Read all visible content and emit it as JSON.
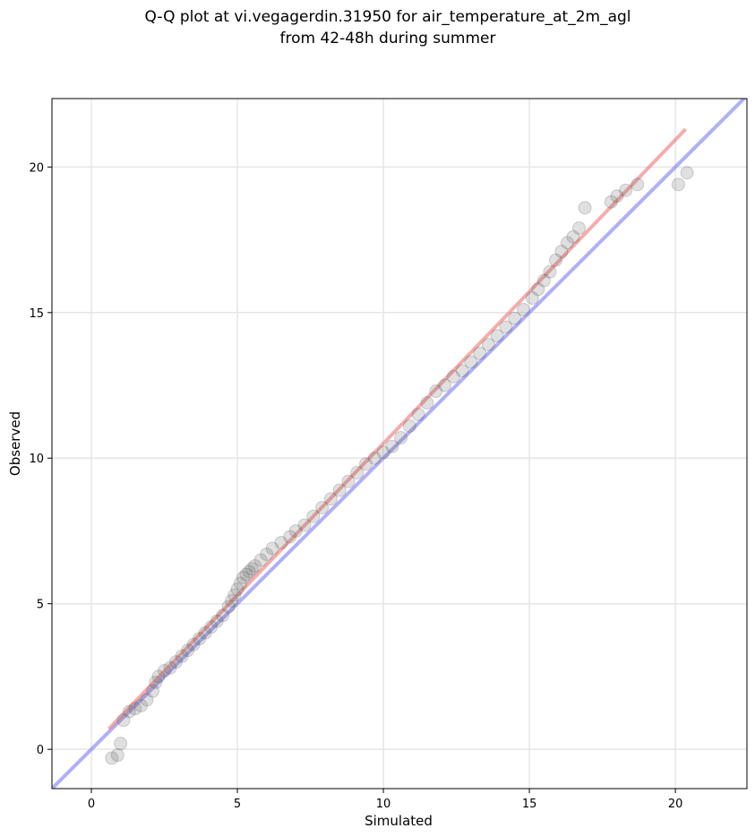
{
  "chart_data": {
    "type": "scatter",
    "title_lines": [
      "Q-Q plot at vi.vegagerdin.31950 for air_temperature_at_2m_agl",
      "from 42-48h during summer"
    ],
    "xlabel": "Simulated",
    "ylabel": "Observed",
    "xlim": [
      -1.35,
      22.45
    ],
    "ylim": [
      -1.35,
      22.35
    ],
    "xticks": [
      0,
      5,
      10,
      15,
      20
    ],
    "yticks": [
      0,
      5,
      10,
      15,
      20
    ],
    "xtick_labels": [
      "0",
      "5",
      "10",
      "15",
      "20"
    ],
    "ytick_labels": [
      "0",
      "5",
      "10",
      "15",
      "20"
    ],
    "grid": true,
    "colors": {
      "points": "#555555",
      "identity_line": "#7b7bf0",
      "fit_line": "#ef8080"
    },
    "identity_line": {
      "x": [
        -1.35,
        22.45
      ],
      "y": [
        -1.35,
        22.45
      ]
    },
    "fit_line": {
      "x": [
        0.6,
        20.35
      ],
      "y": [
        0.7,
        21.3
      ]
    },
    "series": [
      {
        "x": [
          0.7,
          0.9,
          1.0,
          1.1,
          1.3,
          1.5,
          1.7,
          1.9,
          2.1,
          2.2,
          2.3,
          2.5,
          2.7,
          2.9,
          3.1,
          3.3,
          3.5,
          3.7,
          3.9,
          4.1,
          4.3,
          4.5,
          4.7,
          4.8,
          4.9,
          5.0,
          5.1,
          5.2,
          5.3,
          5.4,
          5.5,
          5.6,
          5.8,
          6.0,
          6.2,
          6.5,
          6.8,
          7.0,
          7.3,
          7.6,
          7.9,
          8.2,
          8.5,
          8.8,
          9.1,
          9.4,
          9.7,
          10.0,
          10.3,
          10.6,
          10.9,
          11.2,
          11.5,
          11.8,
          12.1,
          12.4,
          12.7,
          13.0,
          13.3,
          13.6,
          13.9,
          14.2,
          14.5,
          14.8,
          15.1,
          15.3,
          15.5,
          15.7,
          15.9,
          16.1,
          16.3,
          16.5,
          16.7,
          16.9,
          17.8,
          18.0,
          18.3,
          18.7,
          20.1,
          20.4
        ],
        "y": [
          -0.3,
          -0.2,
          0.2,
          1.0,
          1.3,
          1.4,
          1.5,
          1.7,
          2.0,
          2.3,
          2.5,
          2.7,
          2.8,
          3.0,
          3.2,
          3.4,
          3.6,
          3.8,
          4.0,
          4.2,
          4.4,
          4.6,
          4.9,
          5.1,
          5.3,
          5.5,
          5.7,
          5.9,
          6.0,
          6.1,
          6.2,
          6.3,
          6.5,
          6.7,
          6.9,
          7.1,
          7.3,
          7.5,
          7.7,
          8.0,
          8.3,
          8.6,
          8.9,
          9.2,
          9.5,
          9.8,
          10.0,
          10.2,
          10.4,
          10.7,
          11.1,
          11.5,
          11.9,
          12.3,
          12.5,
          12.8,
          13.0,
          13.3,
          13.6,
          13.9,
          14.2,
          14.5,
          14.8,
          15.1,
          15.5,
          15.8,
          16.1,
          16.4,
          16.8,
          17.1,
          17.4,
          17.6,
          17.9,
          18.6,
          18.8,
          19.0,
          19.2,
          19.4,
          19.4,
          19.8
        ]
      }
    ]
  }
}
